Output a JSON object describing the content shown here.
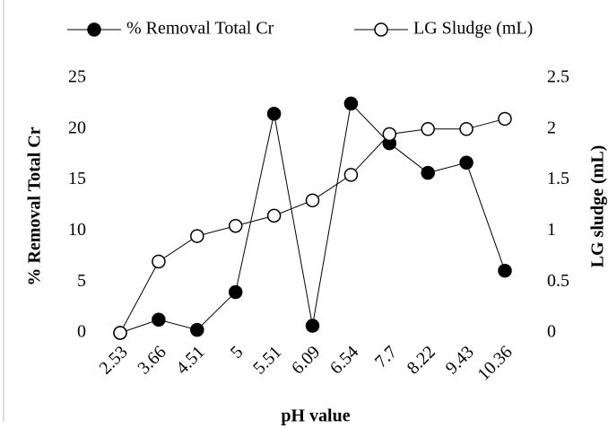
{
  "chart_data": {
    "type": "line",
    "x_label": "pH value",
    "y_label": "% Removal Total Cr",
    "y2_label": "LG sludge (mL)",
    "categories": [
      "2.53",
      "3.66",
      "4.51",
      "5",
      "5.51",
      "6.09",
      "6.54",
      "7.7",
      "8.22",
      "9.43",
      "10.36"
    ],
    "series": [
      {
        "name": "% Removal Total Cr",
        "color": "#000000",
        "marker": "filled",
        "axis": "y",
        "values": [
          0,
          1.3,
          0.3,
          4,
          21.5,
          0.7,
          22.5,
          18.6,
          15.7,
          16.7,
          6.1
        ]
      },
      {
        "name": "LG Sludge (mL)",
        "color": "#000000",
        "marker": "open",
        "axis": "y2",
        "values": [
          0,
          0.7,
          0.95,
          1.05,
          1.15,
          1.3,
          1.55,
          1.95,
          2.0,
          2.0,
          2.1
        ]
      }
    ],
    "ylim": [
      0,
      25
    ],
    "yticks": [
      0,
      5,
      10,
      15,
      20,
      25
    ],
    "y2lim": [
      0,
      2.5
    ],
    "y2ticks": [
      0,
      0.5,
      1,
      1.5,
      2,
      2.5
    ],
    "grid": false,
    "legend": "top"
  }
}
